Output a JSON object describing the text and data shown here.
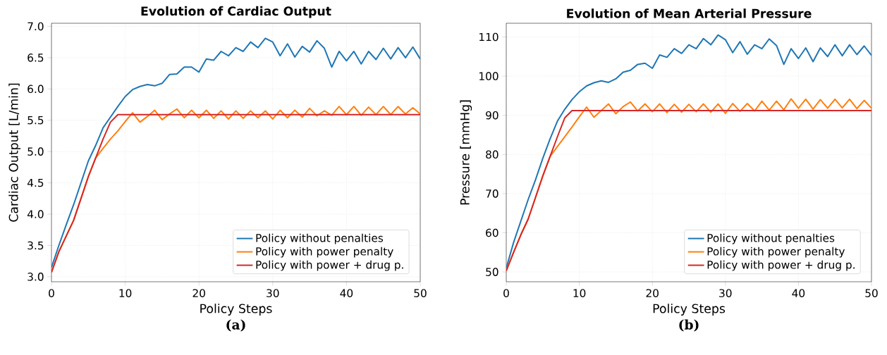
{
  "chart_data": [
    {
      "type": "line",
      "title": "Evolution of Cardiac Output",
      "xlabel": "Policy Steps",
      "ylabel": "Cardiac Output [L/min]",
      "annotations": [
        "(a)"
      ],
      "x": [
        0,
        1,
        2,
        3,
        4,
        5,
        6,
        7,
        8,
        9,
        10,
        11,
        12,
        13,
        14,
        15,
        16,
        17,
        18,
        19,
        20,
        21,
        22,
        23,
        24,
        25,
        26,
        27,
        28,
        29,
        30,
        31,
        32,
        33,
        34,
        35,
        36,
        37,
        38,
        39,
        40,
        41,
        42,
        43,
        44,
        45,
        46,
        47,
        48,
        49,
        50
      ],
      "series": [
        {
          "name": "Policy without penalties",
          "color": "#1f77b4",
          "values": [
            3.15,
            3.5,
            3.83,
            4.15,
            4.5,
            4.85,
            5.1,
            5.38,
            5.55,
            5.72,
            5.88,
            5.99,
            6.04,
            6.07,
            6.05,
            6.09,
            6.23,
            6.24,
            6.35,
            6.35,
            6.27,
            6.48,
            6.46,
            6.6,
            6.53,
            6.66,
            6.6,
            6.75,
            6.66,
            6.81,
            6.75,
            6.53,
            6.72,
            6.51,
            6.68,
            6.59,
            6.77,
            6.65,
            6.35,
            6.6,
            6.45,
            6.6,
            6.4,
            6.6,
            6.47,
            6.65,
            6.48,
            6.66,
            6.5,
            6.67,
            6.48
          ]
        },
        {
          "name": "Policy with power penalty",
          "color": "#ff7f0e",
          "values": [
            3.07,
            3.4,
            3.65,
            3.9,
            4.25,
            4.6,
            4.9,
            5.05,
            5.2,
            5.33,
            5.48,
            5.62,
            5.47,
            5.56,
            5.66,
            5.51,
            5.6,
            5.68,
            5.54,
            5.66,
            5.54,
            5.66,
            5.53,
            5.65,
            5.52,
            5.65,
            5.53,
            5.65,
            5.54,
            5.65,
            5.52,
            5.66,
            5.54,
            5.66,
            5.55,
            5.69,
            5.57,
            5.65,
            5.58,
            5.72,
            5.59,
            5.72,
            5.58,
            5.71,
            5.59,
            5.72,
            5.59,
            5.72,
            5.6,
            5.7,
            5.6
          ]
        },
        {
          "name": "Policy with power + drug p.",
          "color": "#d62728",
          "values": [
            3.07,
            3.4,
            3.65,
            3.9,
            4.25,
            4.6,
            4.9,
            5.2,
            5.47,
            5.59,
            5.59,
            5.59,
            5.59,
            5.59,
            5.59,
            5.59,
            5.59,
            5.59,
            5.59,
            5.59,
            5.59,
            5.59,
            5.59,
            5.59,
            5.59,
            5.59,
            5.59,
            5.59,
            5.59,
            5.59,
            5.59,
            5.59,
            5.59,
            5.59,
            5.59,
            5.59,
            5.59,
            5.59,
            5.59,
            5.59,
            5.59,
            5.59,
            5.59,
            5.59,
            5.59,
            5.59,
            5.59,
            5.59,
            5.59,
            5.59,
            5.59
          ]
        }
      ],
      "xlim": [
        0,
        50
      ],
      "xticks": [
        0,
        10,
        20,
        30,
        40,
        50
      ],
      "ylim": [
        2.92,
        7.05
      ],
      "yticks": [
        {
          "value": 3,
          "label": "3.0"
        },
        3.5,
        {
          "value": 4,
          "label": "4.0"
        },
        4.5,
        {
          "value": 5,
          "label": "5.0"
        },
        5.5,
        {
          "value": 6,
          "label": "6.0"
        },
        6.5,
        {
          "value": 7,
          "label": "7.0"
        }
      ],
      "grid": true,
      "legend": "bottom right",
      "marker": "none",
      "line_style": "solid"
    },
    {
      "type": "line",
      "title": "Evolution of Mean Arterial Pressure",
      "xlabel": "Policy Steps",
      "ylabel": "Pressure [mmHg]",
      "annotations": [
        "(b)"
      ],
      "x": [
        0,
        1,
        2,
        3,
        4,
        5,
        6,
        7,
        8,
        9,
        10,
        11,
        12,
        13,
        14,
        15,
        16,
        17,
        18,
        19,
        20,
        21,
        22,
        23,
        24,
        25,
        26,
        27,
        28,
        29,
        30,
        31,
        32,
        33,
        34,
        35,
        36,
        37,
        38,
        39,
        40,
        41,
        42,
        43,
        44,
        45,
        46,
        47,
        48,
        49,
        50
      ],
      "series": [
        {
          "name": "Policy without penalties",
          "color": "#1f77b4",
          "values": [
            51,
            57.5,
            63,
            68.5,
            73.5,
            79,
            84,
            88.5,
            91.5,
            94,
            96,
            97.5,
            98.3,
            98.8,
            98.4,
            99.3,
            101,
            101.5,
            103,
            103.3,
            102,
            105.4,
            104.8,
            107,
            105.8,
            108,
            107,
            109.6,
            108,
            110.5,
            109.3,
            106,
            108.8,
            105.6,
            108,
            107,
            109.5,
            107.8,
            103,
            107,
            104.5,
            107.2,
            103.7,
            107.2,
            105,
            108,
            105.2,
            108,
            105.5,
            107.7,
            105.3
          ]
        },
        {
          "name": "Policy with power penalty",
          "color": "#ff7f0e",
          "values": [
            50.3,
            55,
            59.5,
            63.5,
            69,
            74.5,
            79.5,
            82,
            84.5,
            87,
            89.6,
            92.1,
            89.5,
            91.2,
            92.9,
            90.4,
            92.2,
            93.4,
            91.1,
            92.9,
            90.9,
            92.9,
            90.7,
            92.8,
            90.8,
            92.8,
            90.9,
            92.9,
            90.8,
            92.9,
            90.5,
            93,
            91,
            93,
            91.1,
            93.6,
            91.3,
            93.6,
            91.4,
            94.2,
            91.8,
            94.1,
            91.6,
            94,
            91.8,
            94.1,
            91.9,
            94.1,
            91.7,
            93.8,
            91.8
          ]
        },
        {
          "name": "Policy with power + drug p.",
          "color": "#d62728",
          "values": [
            50.3,
            55,
            59.5,
            63.5,
            69,
            74.5,
            79.5,
            84.5,
            89.3,
            91.2,
            91.2,
            91.2,
            91.2,
            91.2,
            91.2,
            91.2,
            91.2,
            91.2,
            91.2,
            91.2,
            91.2,
            91.2,
            91.2,
            91.2,
            91.2,
            91.2,
            91.2,
            91.2,
            91.2,
            91.2,
            91.2,
            91.2,
            91.2,
            91.2,
            91.2,
            91.2,
            91.2,
            91.2,
            91.2,
            91.2,
            91.2,
            91.2,
            91.2,
            91.2,
            91.2,
            91.2,
            91.2,
            91.2,
            91.2,
            91.2,
            91.2
          ]
        }
      ],
      "xlim": [
        0,
        50
      ],
      "xticks": [
        0,
        10,
        20,
        30,
        40,
        50
      ],
      "ylim": [
        47.5,
        113.5
      ],
      "yticks": [
        50,
        60,
        70,
        80,
        90,
        100,
        110
      ],
      "grid": true,
      "legend": "bottom right",
      "marker": "none",
      "line_style": "solid"
    }
  ]
}
